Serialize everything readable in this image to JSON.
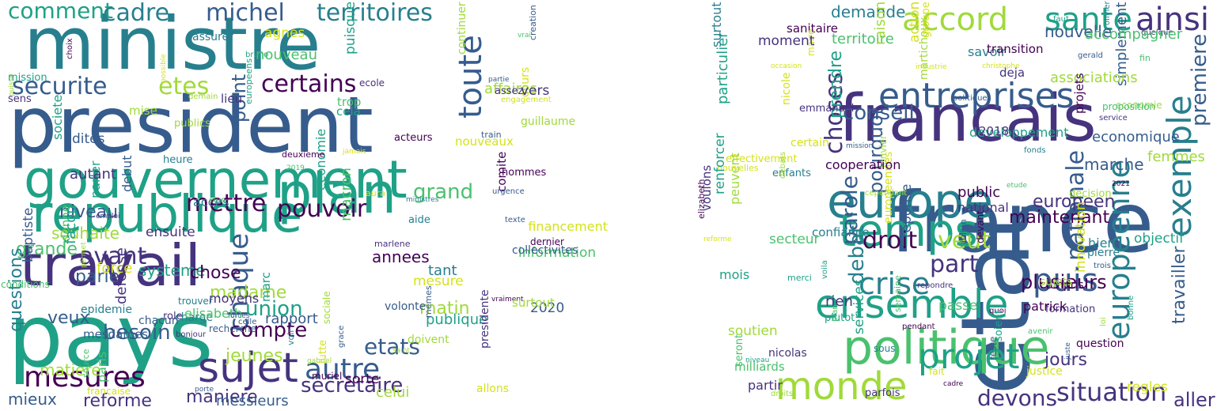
{
  "palette": [
    "#440154",
    "#46337e",
    "#365c8d",
    "#277f8e",
    "#1fa187",
    "#4ac16d",
    "#a0da39",
    "#d4e21a"
  ],
  "left_cloud": {
    "words": [
      "ministre",
      "president",
      "gouvernement",
      "republique",
      "travail",
      "pays",
      "mesures",
      "sujet",
      "plan",
      "pouvoir",
      "securite",
      "etes",
      "certains",
      "comment",
      "cadre",
      "michel",
      "territoires",
      "toute",
      "mettre",
      "avant",
      "grande",
      "grand",
      "niveau",
      "souhaite",
      "chaque",
      "union",
      "compte",
      "autre",
      "etats",
      "secretaire",
      "reforme",
      "maniere",
      "jeunes",
      "madame",
      "systeme",
      "chose",
      "parle",
      "point",
      "besoin",
      "veux",
      "matiere",
      "questions",
      "mieux",
      "annees",
      "matin",
      "celui",
      "rapport",
      "aura",
      "bruno",
      "francaise",
      "marc",
      "publics",
      "dernier",
      "allons",
      "jamais",
      "dites",
      "cours",
      "moyens",
      "charge",
      "source",
      "ecole",
      "information",
      "macron",
      "affaires",
      "trop",
      "heure",
      "choix",
      "gabriel",
      "muriel",
      "engagement",
      "chacun",
      "societe",
      "marlene",
      "elisabeth",
      "paris",
      "agnes",
      "messieurs",
      "mise",
      "texte",
      "lieu",
      "volonte",
      "permet",
      "donne",
      "vraiment",
      "demain",
      "possible",
      "creation",
      "recherche",
      "continuer",
      "baptiste",
      "porte",
      "vrai",
      "role",
      "saint",
      "mesdames",
      "ensuite",
      "facon",
      "tant",
      "publique",
      "defense",
      "nouveau",
      "comite",
      "economie",
      "financement",
      "assez",
      "sorte",
      "train",
      "force",
      "debut",
      "parler",
      "trouver",
      "conditions",
      "acces",
      "bonjour",
      "collectivites",
      "puisque",
      "acteurs",
      "partie",
      "vers",
      "2019",
      "2020",
      "forces",
      "surtout",
      "doivent",
      "voir",
      "lutte",
      "sociale",
      "puisse",
      "autant",
      "assurer",
      "deuxieme",
      "emploi",
      "aide",
      "elus",
      "europeens",
      "guillaume",
      "memes",
      "mesure",
      "grace",
      "hommes",
      "nouveaux",
      "presidente",
      "cela",
      "celle",
      "sens",
      "ministres",
      "epidemie",
      "mission",
      "urgence"
    ]
  },
  "right_cloud": {
    "words": [
      "etat",
      "france",
      "francais",
      "accord",
      "sante",
      "ainsi",
      "entreprises",
      "europe",
      "temps",
      "ensemble",
      "politique",
      "monde",
      "projet",
      "situation",
      "europeenne",
      "exemple",
      "nationale",
      "puis",
      "crise",
      "droit",
      "part",
      "veut",
      "choses",
      "parole",
      "conseil",
      "debat",
      "pourquoi",
      "plusieurs",
      "devons",
      "jours",
      "aller",
      "travailler",
      "premiere",
      "nouvelle",
      "demande",
      "prendre",
      "developpement",
      "economique",
      "marche",
      "femmes",
      "europeen",
      "maintenant",
      "public",
      "national",
      "objectif",
      "service",
      "effectivement",
      "services",
      "parfois",
      "seront",
      "pierre",
      "enfants",
      "christophe",
      "territoire",
      "certain",
      "simplement",
      "confiance",
      "repondre",
      "economie",
      "passe",
      "formation",
      "sous",
      "milliards",
      "trois",
      "martichoux",
      "merci",
      "hier",
      "quelque",
      "compris",
      "groupe",
      "associations",
      "sanitaire",
      "projets",
      "fonds",
      "elizabeth",
      "nicolas",
      "gerald",
      "olivier",
      "decision",
      "action",
      "sujets",
      "avenir",
      "partir",
      "reste",
      "juste",
      "fait",
      "regles",
      "devant",
      "rien",
      "semaine",
      "peuvent",
      "soutien",
      "particulier",
      "droits",
      "patrick",
      "quoi",
      "nouvelles",
      "mission",
      "plutot",
      "occasion",
      "reponse",
      "pendant",
      "janvier",
      "raison",
      "bonne",
      "savoir",
      "soient",
      "faut",
      "voila",
      "europeennes",
      "2018",
      "2021",
      "cooperation",
      "transition",
      "justice",
      "secteur",
      "politiques",
      "accompagner",
      "renforcer",
      "industrie",
      "emmanuel",
      "julien",
      "nicole",
      "loi",
      "deja",
      "debats",
      "innovation",
      "voulons",
      "mois",
      "fin",
      "cependant",
      "surtout",
      "reforme",
      "etude",
      "maire",
      "plan",
      "cadre",
      "niveau",
      "question",
      "proposition",
      "moment"
    ]
  }
}
